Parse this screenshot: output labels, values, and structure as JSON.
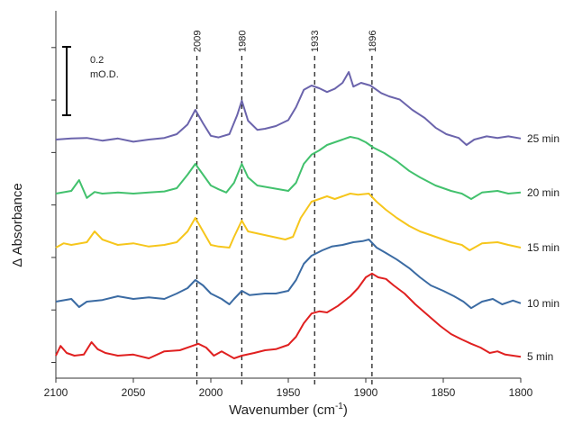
{
  "chart_data": {
    "type": "line",
    "title": "",
    "xlabel_main": "Wavenumber (cm",
    "xlabel_sup": "-1",
    "xlabel_close": ")",
    "ylabel": "Δ Absorbance",
    "xlim": [
      2100,
      1800
    ],
    "x_reversed": true,
    "x_ticks": [
      "2100",
      "2050",
      "2000",
      "1950",
      "1900",
      "1850",
      "1800"
    ],
    "y_tick_count": 7,
    "grid": false,
    "scale_bar": {
      "line1": "0.2",
      "line2": "mO.D."
    },
    "peak_markers": [
      {
        "x": 2009,
        "label": "2009"
      },
      {
        "x": 1980,
        "label": "1980"
      },
      {
        "x": 1933,
        "label": "1933"
      },
      {
        "x": 1896,
        "label": "1896"
      }
    ],
    "series": [
      {
        "name": "25 min",
        "color": "#6b64ac",
        "offset": 4.0,
        "points": [
          [
            2100,
            0.0
          ],
          [
            2090,
            0.02
          ],
          [
            2080,
            0.03
          ],
          [
            2070,
            -0.02
          ],
          [
            2060,
            0.02
          ],
          [
            2050,
            -0.04
          ],
          [
            2040,
            0.0
          ],
          [
            2030,
            0.03
          ],
          [
            2022,
            0.1
          ],
          [
            2015,
            0.28
          ],
          [
            2010,
            0.55
          ],
          [
            2005,
            0.3
          ],
          [
            2000,
            0.07
          ],
          [
            1995,
            0.04
          ],
          [
            1988,
            0.1
          ],
          [
            1983,
            0.45
          ],
          [
            1980,
            0.72
          ],
          [
            1976,
            0.35
          ],
          [
            1970,
            0.18
          ],
          [
            1965,
            0.2
          ],
          [
            1958,
            0.25
          ],
          [
            1950,
            0.36
          ],
          [
            1945,
            0.6
          ],
          [
            1940,
            0.92
          ],
          [
            1935,
            1.0
          ],
          [
            1930,
            0.95
          ],
          [
            1925,
            0.88
          ],
          [
            1920,
            0.94
          ],
          [
            1915,
            1.05
          ],
          [
            1911,
            1.25
          ],
          [
            1908,
            0.98
          ],
          [
            1903,
            1.05
          ],
          [
            1897,
            1.0
          ],
          [
            1890,
            0.86
          ],
          [
            1885,
            0.8
          ],
          [
            1878,
            0.74
          ],
          [
            1870,
            0.55
          ],
          [
            1862,
            0.4
          ],
          [
            1855,
            0.22
          ],
          [
            1848,
            0.1
          ],
          [
            1840,
            0.03
          ],
          [
            1835,
            -0.1
          ],
          [
            1830,
            0.0
          ],
          [
            1822,
            0.06
          ],
          [
            1815,
            0.03
          ],
          [
            1808,
            0.06
          ],
          [
            1800,
            0.02
          ]
        ]
      },
      {
        "name": "20 min",
        "color": "#42c16d",
        "offset": 3.0,
        "points": [
          [
            2100,
            0.0
          ],
          [
            2090,
            0.05
          ],
          [
            2085,
            0.25
          ],
          [
            2080,
            -0.08
          ],
          [
            2075,
            0.03
          ],
          [
            2070,
            0.0
          ],
          [
            2060,
            0.02
          ],
          [
            2050,
            0.0
          ],
          [
            2040,
            0.02
          ],
          [
            2030,
            0.04
          ],
          [
            2022,
            0.1
          ],
          [
            2015,
            0.35
          ],
          [
            2010,
            0.55
          ],
          [
            2005,
            0.35
          ],
          [
            2000,
            0.15
          ],
          [
            1995,
            0.08
          ],
          [
            1990,
            0.02
          ],
          [
            1985,
            0.2
          ],
          [
            1980,
            0.55
          ],
          [
            1976,
            0.3
          ],
          [
            1970,
            0.15
          ],
          [
            1960,
            0.1
          ],
          [
            1950,
            0.05
          ],
          [
            1945,
            0.2
          ],
          [
            1940,
            0.55
          ],
          [
            1935,
            0.72
          ],
          [
            1930,
            0.8
          ],
          [
            1925,
            0.9
          ],
          [
            1920,
            0.95
          ],
          [
            1915,
            1.0
          ],
          [
            1910,
            1.05
          ],
          [
            1905,
            1.02
          ],
          [
            1900,
            0.95
          ],
          [
            1895,
            0.85
          ],
          [
            1888,
            0.75
          ],
          [
            1880,
            0.6
          ],
          [
            1872,
            0.42
          ],
          [
            1865,
            0.3
          ],
          [
            1855,
            0.15
          ],
          [
            1845,
            0.05
          ],
          [
            1838,
            0.0
          ],
          [
            1832,
            -0.1
          ],
          [
            1825,
            0.02
          ],
          [
            1815,
            0.05
          ],
          [
            1808,
            0.0
          ],
          [
            1800,
            0.02
          ]
        ]
      },
      {
        "name": "15 min",
        "color": "#f6c61c",
        "offset": 2.0,
        "points": [
          [
            2100,
            0.0
          ],
          [
            2095,
            0.08
          ],
          [
            2090,
            0.05
          ],
          [
            2080,
            0.1
          ],
          [
            2075,
            0.3
          ],
          [
            2070,
            0.15
          ],
          [
            2060,
            0.05
          ],
          [
            2050,
            0.08
          ],
          [
            2040,
            0.02
          ],
          [
            2030,
            0.05
          ],
          [
            2022,
            0.1
          ],
          [
            2015,
            0.3
          ],
          [
            2010,
            0.55
          ],
          [
            2005,
            0.3
          ],
          [
            2000,
            0.05
          ],
          [
            1995,
            0.02
          ],
          [
            1988,
            0.0
          ],
          [
            1985,
            0.2
          ],
          [
            1980,
            0.5
          ],
          [
            1976,
            0.3
          ],
          [
            1968,
            0.25
          ],
          [
            1960,
            0.2
          ],
          [
            1952,
            0.15
          ],
          [
            1947,
            0.2
          ],
          [
            1942,
            0.55
          ],
          [
            1935,
            0.85
          ],
          [
            1930,
            0.9
          ],
          [
            1925,
            0.95
          ],
          [
            1920,
            0.9
          ],
          [
            1915,
            0.95
          ],
          [
            1910,
            1.0
          ],
          [
            1905,
            0.98
          ],
          [
            1898,
            1.0
          ],
          [
            1893,
            0.85
          ],
          [
            1887,
            0.7
          ],
          [
            1880,
            0.55
          ],
          [
            1872,
            0.4
          ],
          [
            1865,
            0.3
          ],
          [
            1855,
            0.2
          ],
          [
            1845,
            0.1
          ],
          [
            1838,
            0.05
          ],
          [
            1833,
            -0.05
          ],
          [
            1825,
            0.08
          ],
          [
            1815,
            0.1
          ],
          [
            1808,
            0.05
          ],
          [
            1800,
            0.0
          ]
        ]
      },
      {
        "name": "10 min",
        "color": "#3b6ba3",
        "offset": 1.0,
        "points": [
          [
            2100,
            0.0
          ],
          [
            2090,
            0.05
          ],
          [
            2085,
            -0.1
          ],
          [
            2080,
            0.0
          ],
          [
            2070,
            0.03
          ],
          [
            2060,
            0.1
          ],
          [
            2050,
            0.05
          ],
          [
            2040,
            0.08
          ],
          [
            2030,
            0.05
          ],
          [
            2022,
            0.15
          ],
          [
            2015,
            0.25
          ],
          [
            2010,
            0.4
          ],
          [
            2005,
            0.3
          ],
          [
            2000,
            0.15
          ],
          [
            1993,
            0.05
          ],
          [
            1988,
            -0.05
          ],
          [
            1985,
            0.05
          ],
          [
            1980,
            0.2
          ],
          [
            1975,
            0.12
          ],
          [
            1965,
            0.15
          ],
          [
            1958,
            0.15
          ],
          [
            1950,
            0.2
          ],
          [
            1945,
            0.4
          ],
          [
            1940,
            0.7
          ],
          [
            1935,
            0.85
          ],
          [
            1928,
            0.95
          ],
          [
            1922,
            1.02
          ],
          [
            1915,
            1.05
          ],
          [
            1908,
            1.1
          ],
          [
            1902,
            1.12
          ],
          [
            1898,
            1.15
          ],
          [
            1893,
            1.0
          ],
          [
            1887,
            0.9
          ],
          [
            1880,
            0.78
          ],
          [
            1872,
            0.62
          ],
          [
            1865,
            0.45
          ],
          [
            1858,
            0.3
          ],
          [
            1850,
            0.2
          ],
          [
            1843,
            0.1
          ],
          [
            1837,
            0.0
          ],
          [
            1832,
            -0.12
          ],
          [
            1825,
            0.0
          ],
          [
            1818,
            0.05
          ],
          [
            1812,
            -0.05
          ],
          [
            1805,
            0.02
          ],
          [
            1800,
            -0.03
          ]
        ]
      },
      {
        "name": "5 min",
        "color": "#e02020",
        "offset": 0.0,
        "points": [
          [
            2100,
            0.0
          ],
          [
            2097,
            0.18
          ],
          [
            2093,
            0.05
          ],
          [
            2088,
            0.0
          ],
          [
            2082,
            0.02
          ],
          [
            2077,
            0.25
          ],
          [
            2073,
            0.12
          ],
          [
            2068,
            0.05
          ],
          [
            2060,
            0.0
          ],
          [
            2050,
            0.02
          ],
          [
            2040,
            -0.05
          ],
          [
            2030,
            0.08
          ],
          [
            2020,
            0.1
          ],
          [
            2012,
            0.18
          ],
          [
            2008,
            0.22
          ],
          [
            2003,
            0.15
          ],
          [
            1998,
            0.0
          ],
          [
            1993,
            0.08
          ],
          [
            1985,
            -0.05
          ],
          [
            1980,
            0.0
          ],
          [
            1972,
            0.05
          ],
          [
            1965,
            0.1
          ],
          [
            1958,
            0.12
          ],
          [
            1950,
            0.2
          ],
          [
            1945,
            0.35
          ],
          [
            1940,
            0.6
          ],
          [
            1935,
            0.78
          ],
          [
            1930,
            0.82
          ],
          [
            1925,
            0.8
          ],
          [
            1918,
            0.92
          ],
          [
            1910,
            1.1
          ],
          [
            1905,
            1.25
          ],
          [
            1900,
            1.45
          ],
          [
            1896,
            1.52
          ],
          [
            1892,
            1.45
          ],
          [
            1887,
            1.42
          ],
          [
            1882,
            1.3
          ],
          [
            1875,
            1.15
          ],
          [
            1868,
            0.95
          ],
          [
            1860,
            0.75
          ],
          [
            1852,
            0.55
          ],
          [
            1845,
            0.4
          ],
          [
            1838,
            0.3
          ],
          [
            1832,
            0.22
          ],
          [
            1826,
            0.15
          ],
          [
            1820,
            0.05
          ],
          [
            1815,
            0.08
          ],
          [
            1810,
            0.02
          ],
          [
            1805,
            0.0
          ],
          [
            1800,
            -0.02
          ]
        ]
      }
    ]
  }
}
